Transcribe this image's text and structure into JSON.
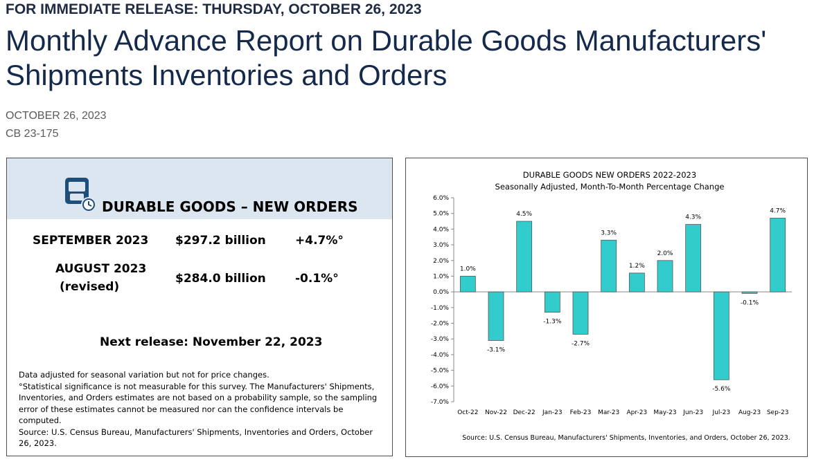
{
  "header": {
    "kicker": "FOR IMMEDIATE RELEASE: THURSDAY, OCTOBER 26, 2023",
    "title": "Monthly Advance Report on Durable Goods Manufacturers' Shipments Inventories and Orders",
    "date": "OCTOBER 26, 2023",
    "release_number": "CB 23-175"
  },
  "summary": {
    "icon": "calculator-clock-icon",
    "title": "DURABLE GOODS – NEW ORDERS",
    "rows": [
      {
        "label": "SEPTEMBER 2023",
        "value": "$297.2 billion",
        "change": "+4.7%°"
      },
      {
        "label": "AUGUST 2023",
        "label_note": "(revised)",
        "value": "$284.0 billion",
        "change": "-0.1%°"
      }
    ],
    "next_release": "Next release: November 22, 2023",
    "notes": [
      "Data adjusted for seasonal variation but not for price changes.",
      "°Statistical significance is not measurable for this survey.  The Manufacturers' Shipments, Inventories, and Orders estimates are not based on a probability sample, so the sampling error of these estimates cannot be measured nor can the confidence intervals be computed.",
      "Source: U.S. Census Bureau, Manufacturers' Shipments, Inventories and Orders, October 26, 2023."
    ]
  },
  "colors": {
    "bar": "#33cccc",
    "header_bg": "#dce6f1",
    "title": "#14294b"
  },
  "chart_data": {
    "type": "bar",
    "title": "DURABLE GOODS NEW ORDERS 2022-2023",
    "subtitle": "Seasonally Adjusted,  Month-To-Month Percentage Change",
    "categories": [
      "Oct-22",
      "Nov-22",
      "Dec-22",
      "Jan-23",
      "Feb-23",
      "Mar-23",
      "Apr-23",
      "May-23",
      "Jun-23",
      "Jul-23",
      "Aug-23",
      "Sep-23"
    ],
    "values": [
      1.0,
      -3.1,
      4.5,
      -1.3,
      -2.7,
      3.3,
      1.2,
      2.0,
      4.3,
      -5.6,
      -0.1,
      4.7
    ],
    "value_labels": [
      "1.0%",
      "-3.1%",
      "4.5%",
      "-1.3%",
      "-2.7%",
      "3.3%",
      "1.2%",
      "2.0%",
      "4.3%",
      "-5.6%",
      "-0.1%",
      "4.7%"
    ],
    "yticks": [
      "6.0%",
      "5.0%",
      "4.0%",
      "3.0%",
      "2.0%",
      "1.0%",
      "0.0%",
      "-1.0%",
      "-2.0%",
      "-3.0%",
      "-4.0%",
      "-5.0%",
      "-6.0%",
      "-7.0%"
    ],
    "ylim": [
      -7,
      6
    ],
    "grid": false,
    "source": "Source: U.S. Census Bureau, Manufacturers' Shipments, Inventories, and Orders, October 26, 2023."
  }
}
